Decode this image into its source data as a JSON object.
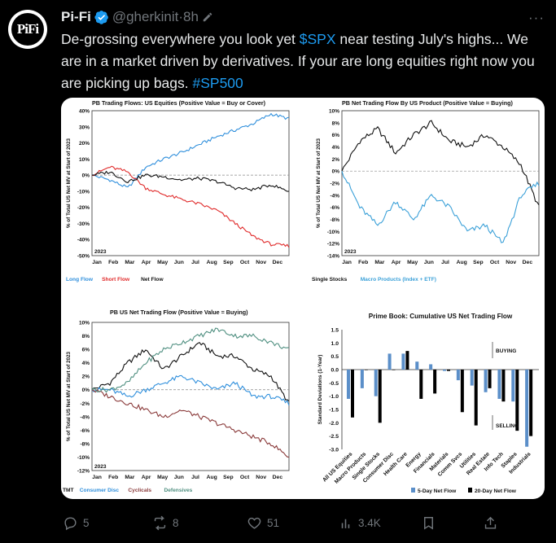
{
  "author": {
    "name": "Pi-Fi",
    "handle": "@gherkinit",
    "separator": "·",
    "time": "8h",
    "avatar_text": "PiFi"
  },
  "tweet": {
    "segments": [
      {
        "text": "De-grossing everywhere you look yet ",
        "link": false
      },
      {
        "text": "$SPX",
        "link": true
      },
      {
        "text": " near testing July's highs... We are in a market driven by derivatives. If your are long equities right now you are picking up bags. ",
        "link": false
      },
      {
        "text": "#SP500",
        "link": true
      }
    ]
  },
  "actions": {
    "replies": "5",
    "reposts": "8",
    "likes": "51",
    "views": "3.4K"
  },
  "colors": {
    "link": "#1d9bf0",
    "muted": "#71767b",
    "text": "#e7e9ea"
  },
  "chart_data": [
    {
      "type": "line",
      "title": "PB Trading Flows: US Equities (Positive Value = Buy or Cover)",
      "ylabel": "% of Total US Net MV at Start of 2023",
      "year_label": "2023",
      "x": [
        "Jan",
        "Feb",
        "Mar",
        "Apr",
        "May",
        "Jun",
        "Jul",
        "Aug",
        "Sep",
        "Oct",
        "Nov",
        "Dec"
      ],
      "ylim": [
        -50,
        40
      ],
      "yticks": [
        "40%",
        "30%",
        "20%",
        "10%",
        "0%",
        "-10%",
        "-20%",
        "-30%",
        "-40%",
        "-50%"
      ],
      "series": [
        {
          "name": "Long Flow",
          "color": "#2f8fdc",
          "values": [
            0,
            -3,
            -8,
            5,
            10,
            14,
            19,
            24,
            28,
            32,
            38,
            35
          ]
        },
        {
          "name": "Short Flow",
          "color": "#e02a2a",
          "values": [
            0,
            5,
            2,
            -8,
            -12,
            -15,
            -18,
            -22,
            -30,
            -38,
            -43,
            -44
          ]
        },
        {
          "name": "Net Flow",
          "color": "#111111",
          "values": [
            0,
            2,
            -4,
            0,
            -1,
            -3,
            -2,
            -4,
            -8,
            -9,
            -6,
            -10
          ]
        }
      ]
    },
    {
      "type": "line",
      "title": "PB Net Trading Flow By US Product (Positive Value = Buying)",
      "ylabel": "% of Total US Net MV at Start of 2023",
      "year_label": "2023",
      "x": [
        "Jan",
        "Feb",
        "Mar",
        "Apr",
        "May",
        "Jun",
        "Jul",
        "Aug",
        "Sep",
        "Oct",
        "Nov",
        "Dec"
      ],
      "ylim": [
        -14,
        10
      ],
      "yticks": [
        "10%",
        "8%",
        "6%",
        "4%",
        "2%",
        "0%",
        "-2%",
        "-4%",
        "-6%",
        "-8%",
        "-10%",
        "-12%",
        "-14%"
      ],
      "series": [
        {
          "name": "Single Stocks",
          "color": "#111111",
          "values": [
            0,
            5,
            7,
            3,
            6,
            8,
            5,
            4,
            6,
            4,
            1,
            -6
          ]
        },
        {
          "name": "Macro Products (Index + ETF)",
          "color": "#3aa0d8",
          "values": [
            0,
            -6,
            -9,
            -5,
            -8,
            -4,
            -6,
            -10,
            -9,
            -12,
            -4,
            -2
          ]
        }
      ]
    },
    {
      "type": "line",
      "title": "PB US Net Trading Flow (Positive Value = Buying)",
      "ylabel": "% of Total US Net MV at Start of 2023",
      "year_label": "2023",
      "x": [
        "Jan",
        "Feb",
        "Mar",
        "Apr",
        "May",
        "Jun",
        "Jul",
        "Aug",
        "Sep",
        "Oct",
        "Nov",
        "Dec"
      ],
      "ylim": [
        -12,
        10
      ],
      "yticks": [
        "10%",
        "8%",
        "6%",
        "4%",
        "2%",
        "0%",
        "-2%",
        "-4%",
        "-6%",
        "-8%",
        "-10%",
        "-12%"
      ],
      "series": [
        {
          "name": "TMT",
          "color": "#111111",
          "values": [
            0,
            1,
            4,
            6,
            3,
            5,
            7,
            5,
            5,
            3,
            2,
            -2
          ]
        },
        {
          "name": "Consumer Disc",
          "color": "#2f8fdc",
          "values": [
            0,
            0,
            -1,
            0,
            1,
            2,
            1,
            0,
            1,
            -1,
            -1,
            -2
          ]
        },
        {
          "name": "Cyclicals",
          "color": "#8a3a3a",
          "values": [
            0,
            -1,
            -2,
            -3,
            -4,
            -3,
            -4,
            -5,
            -6,
            -7,
            -8,
            -10
          ]
        },
        {
          "name": "Defensives",
          "color": "#4f8f80",
          "values": [
            0,
            0,
            1,
            4,
            6,
            7,
            8,
            9,
            8,
            8,
            7,
            6
          ]
        }
      ]
    },
    {
      "type": "bar",
      "title": "Prime Book: Cumulative US Net Trading Flow",
      "ylabel": "Standard Deviations (1-Year)",
      "ylim": [
        -3.0,
        1.5
      ],
      "yticks": [
        "1.5",
        "1.0",
        "0.5",
        "0.0",
        "-0.5",
        "-1.0",
        "-1.5",
        "-2.0",
        "-2.5",
        "-3.0"
      ],
      "annotations": [
        "BUYING",
        "SELLING"
      ],
      "categories": [
        "All US Equities",
        "Macro Products",
        "Single Stocks",
        "Consumer Disc",
        "Health Care",
        "Energy",
        "Financials",
        "Materials",
        "Comm Svcs",
        "Utilities",
        "Real Estate",
        "Info Tech",
        "Staples",
        "Industrials"
      ],
      "series": [
        {
          "name": "5-Day Net Flow",
          "color": "#5b8fc9",
          "values": [
            -1.1,
            -0.7,
            -1.0,
            0.6,
            0.6,
            0.3,
            0.2,
            -0.05,
            -0.4,
            -0.6,
            -0.85,
            -1.1,
            -1.2,
            -2.9
          ]
        },
        {
          "name": "20-Day Net Flow",
          "color": "#000000",
          "values": [
            -1.8,
            0.0,
            -2.0,
            0.0,
            0.7,
            -1.1,
            -0.9,
            -0.05,
            -1.6,
            -2.1,
            -0.7,
            -1.2,
            -2.3,
            -2.5
          ]
        }
      ]
    }
  ]
}
